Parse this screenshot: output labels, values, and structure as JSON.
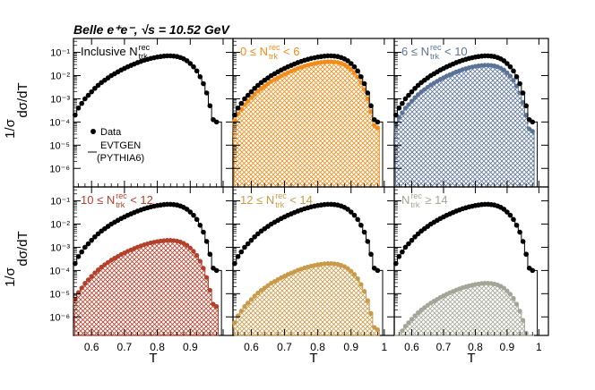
{
  "figure": {
    "header": "Belle e⁺e⁻,  √s = 10.52 GeV",
    "ylabel_num": "1",
    "ylabel_den": "σ",
    "ylabel_dnum": "dσ",
    "ylabel_dden": "dT",
    "legend_data": "Data",
    "legend_mc_line1": "EVTGEN",
    "legend_mc_line2": "(PYTHIA6)"
  },
  "colors": {
    "data": "#000000",
    "orange": "#f28c1a",
    "blue": "#5b7396",
    "red": "#b3402a",
    "tan": "#c99a4a",
    "gray": "#a3a597"
  },
  "chart_data": [
    {
      "type": "scatter",
      "panel_label_pre": "Inclusive N",
      "panel_label_post": "",
      "label_sup": "rec",
      "label_sub": "trk",
      "xlabel": "",
      "ylabel": "",
      "x_ticks": [
        "0.6",
        "0.7",
        "0.8",
        "0.9"
      ],
      "y_ticks": [
        "10⁻¹",
        "10⁻²",
        "10⁻³",
        "10⁻⁴",
        "10⁻⁵",
        "10⁻⁶"
      ],
      "xlim": [
        0.545,
        1.03
      ],
      "ylim_log10": [
        -6.8,
        -0.4
      ],
      "series": [
        {
          "x": [
            0.55,
            0.56,
            0.57,
            0.58,
            0.59,
            0.6,
            0.61,
            0.62,
            0.63,
            0.64,
            0.65,
            0.66,
            0.67,
            0.68,
            0.69,
            0.7,
            0.71,
            0.72,
            0.73,
            0.74,
            0.75,
            0.76,
            0.77,
            0.78,
            0.79,
            0.8,
            0.81,
            0.82,
            0.83,
            0.84,
            0.85,
            0.86,
            0.87,
            0.88,
            0.89,
            0.9,
            0.91,
            0.92,
            0.93,
            0.94,
            0.95,
            0.96,
            0.97,
            0.98
          ],
          "log10_y": [
            -3.7,
            -3.4,
            -3.2,
            -3.0,
            -2.85,
            -2.7,
            -2.55,
            -2.42,
            -2.3,
            -2.2,
            -2.1,
            -2.0,
            -1.92,
            -1.84,
            -1.76,
            -1.69,
            -1.62,
            -1.56,
            -1.5,
            -1.44,
            -1.39,
            -1.34,
            -1.3,
            -1.26,
            -1.23,
            -1.2,
            -1.18,
            -1.16,
            -1.15,
            -1.15,
            -1.16,
            -1.18,
            -1.22,
            -1.28,
            -1.36,
            -1.48,
            -1.62,
            -1.8,
            -2.05,
            -2.35,
            -2.75,
            -3.3,
            -3.9,
            -4.0
          ]
        }
      ]
    },
    {
      "type": "scatter",
      "panel_label_pre": "0 ≤ N",
      "panel_label_post": " < 6",
      "label_sup": "rec",
      "label_sub": "trk",
      "x_ticks": [
        "0.6",
        "0.7",
        "0.8",
        "0.9",
        "1"
      ],
      "xlim": [
        0.545,
        1.03
      ],
      "ylim_log10": [
        -6.8,
        -0.4
      ],
      "series": [
        {
          "name": "",
          "log10_y_offset": 0
        },
        {
          "log10_y_offset": -0.25,
          "color": "orange"
        }
      ]
    },
    {
      "type": "scatter",
      "panel_label_pre": "6 ≤ N",
      "panel_label_post": " < 10",
      "label_sup": "rec",
      "label_sub": "trk",
      "x_ticks": [
        "0.6",
        "0.7",
        "0.8",
        "0.9",
        "1"
      ],
      "xlim": [
        0.545,
        1.03
      ],
      "ylim_log10": [
        -6.8,
        -0.4
      ],
      "series": [
        {
          "log10_y_offset": 0
        },
        {
          "log10_y_offset": -0.4,
          "color": "blue"
        }
      ]
    },
    {
      "type": "scatter",
      "panel_label_pre": "10 ≤ N",
      "panel_label_post": " < 12",
      "label_sup": "rec",
      "label_sub": "trk",
      "x_ticks": [
        "0.6",
        "0.7",
        "0.8",
        "0.9",
        "1"
      ],
      "xlim": [
        0.545,
        1.03
      ],
      "ylim_log10": [
        -6.8,
        -0.4
      ],
      "series": [
        {
          "log10_y_offset": 0
        },
        {
          "log10_y_offset": -1.55,
          "color": "red"
        }
      ]
    },
    {
      "type": "scatter",
      "panel_label_pre": "12 ≤ N",
      "panel_label_post": " < 14",
      "label_sup": "rec",
      "label_sub": "trk",
      "x_ticks": [
        "0.6",
        "0.7",
        "0.8",
        "0.9",
        "1"
      ],
      "xlim": [
        0.545,
        1.03
      ],
      "ylim_log10": [
        -6.8,
        -0.4
      ],
      "series": [
        {
          "log10_y_offset": 0
        },
        {
          "log10_y_offset": -2.55,
          "color": "tan"
        }
      ]
    },
    {
      "type": "scatter",
      "panel_label_pre": "N",
      "panel_label_post": " ≥ 14",
      "label_sup": "rec",
      "label_sub": "trk",
      "x_ticks": [
        "0.6",
        "0.7",
        "0.8",
        "0.9",
        "1"
      ],
      "xlim": [
        0.545,
        1.03
      ],
      "ylim_log10": [
        -6.8,
        -0.4
      ],
      "series": [
        {
          "log10_y_offset": 0
        },
        {
          "log10_y_offset": -3.4,
          "color": "gray"
        }
      ]
    }
  ],
  "axis": {
    "x_title": "T",
    "x_ticks": [
      "0.6",
      "0.7",
      "0.8",
      "0.9",
      "1"
    ],
    "y_ticks": [
      "10⁻¹",
      "10⁻²",
      "10⁻³",
      "10⁻⁴",
      "10⁻⁵",
      "10⁻⁶"
    ]
  }
}
